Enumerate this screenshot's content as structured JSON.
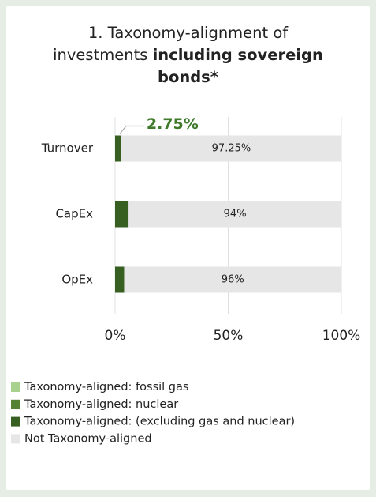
{
  "chart_data": {
    "type": "stacked-barh",
    "title": "1. Taxonomy-alignment of investments",
    "title_bold": "including sovereign bonds*",
    "categories": [
      "Turnover",
      "CapEx",
      "OpEx"
    ],
    "series": [
      {
        "name": "Taxonomy-aligned: fossil gas",
        "color": "#a9d18e",
        "values": [
          0,
          0,
          0
        ]
      },
      {
        "name": "Taxonomy-aligned: nuclear",
        "color": "#548235",
        "values": [
          0,
          0,
          0
        ]
      },
      {
        "name": "Taxonomy-aligned: (excluding gas and nuclear)",
        "color": "#375f22",
        "values": [
          2.75,
          6,
          4
        ],
        "value_labels": [
          "2.75%",
          null,
          null
        ]
      },
      {
        "name": "Not Taxonomy-aligned",
        "color": "#e6e6e6",
        "values": [
          97.25,
          94,
          96
        ],
        "value_labels": [
          "97.25%",
          "94%",
          "96%"
        ]
      }
    ],
    "xlim": [
      0,
      100
    ],
    "xticks": [
      {
        "value": 0,
        "label": "0%"
      },
      {
        "value": 50,
        "label": "50%"
      },
      {
        "value": 100,
        "label": "100%"
      }
    ],
    "grid": true
  }
}
